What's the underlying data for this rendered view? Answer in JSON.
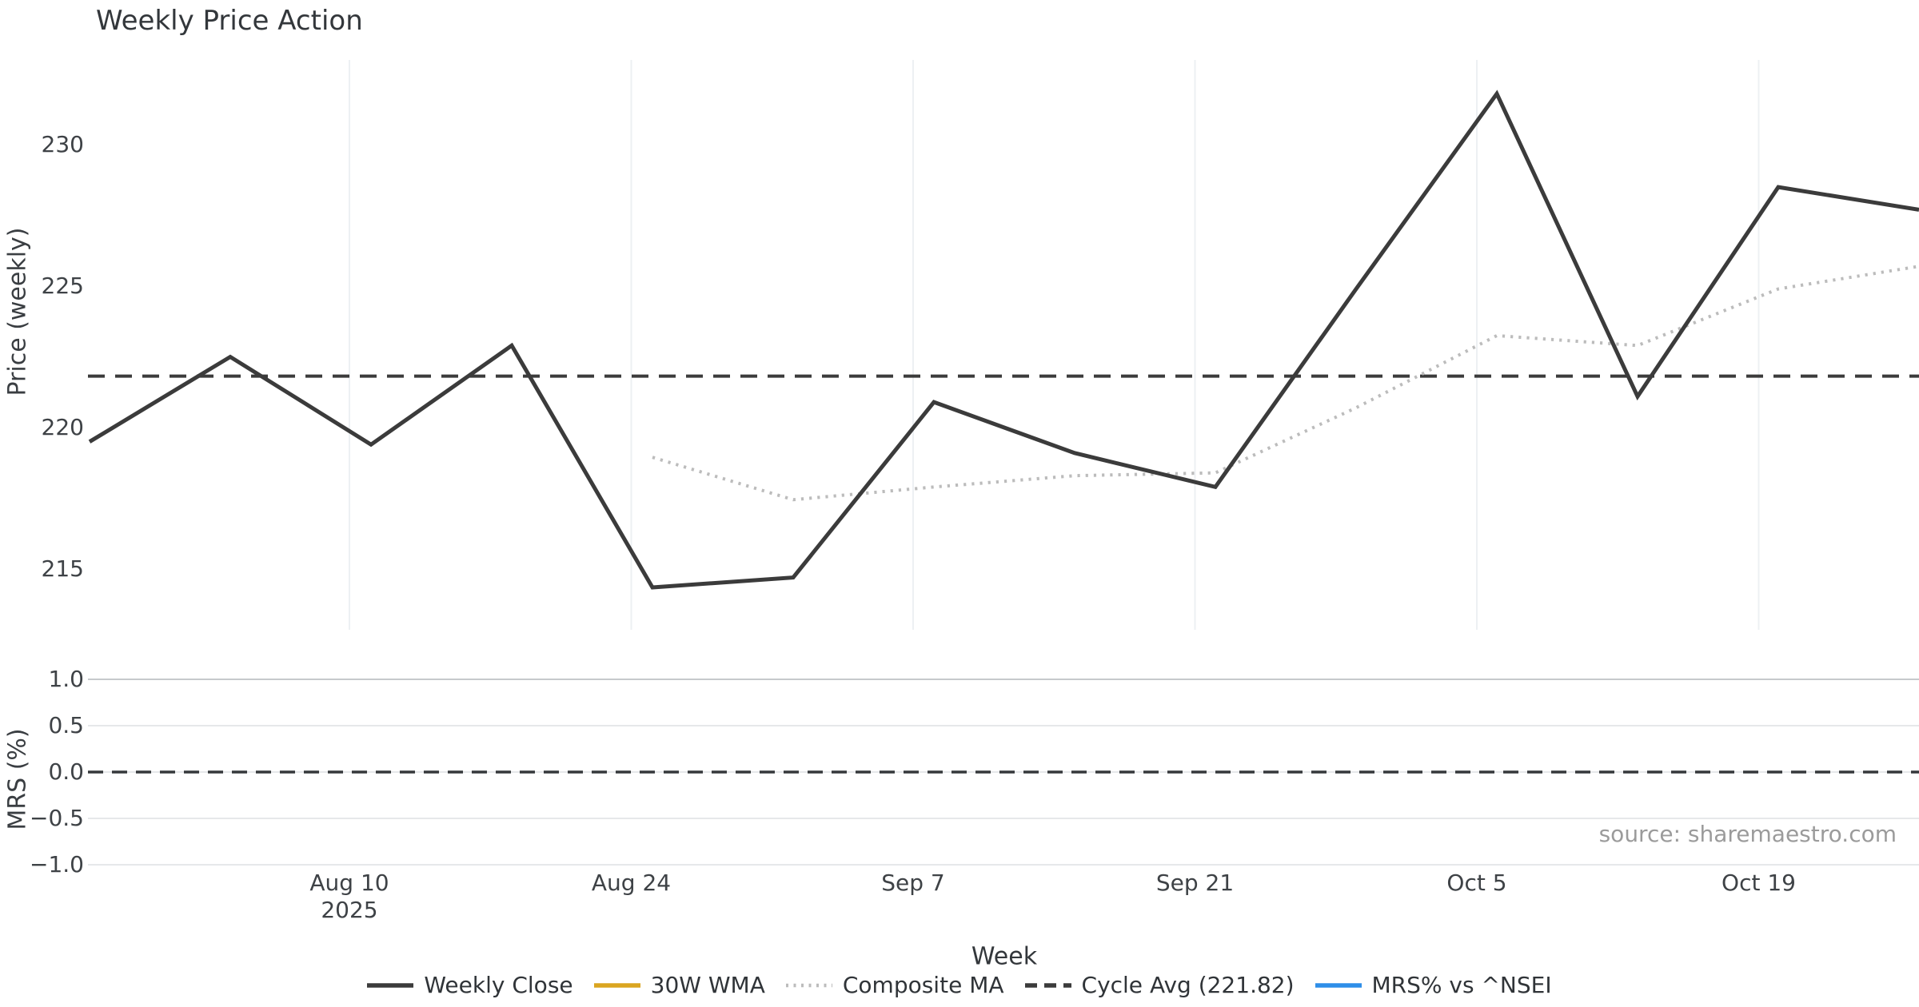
{
  "chart": {
    "title": "Weekly Price Action",
    "x_axis_label": "Week",
    "source_text": "source: sharemaestro.com",
    "price_panel": {
      "y_axis_label": "Price (weekly)",
      "y_ticks": [
        "230",
        "225",
        "220",
        "215"
      ]
    },
    "mrs_panel": {
      "y_axis_label": "MRS (%)",
      "y_ticks": [
        "1.0",
        "0.5",
        "0.0",
        "−0.5",
        "−1.0"
      ]
    },
    "x_ticks": [
      {
        "line1": "Aug 10",
        "line2": "2025"
      },
      {
        "line1": "Aug 24",
        "line2": ""
      },
      {
        "line1": "Sep 7",
        "line2": ""
      },
      {
        "line1": "Sep 21",
        "line2": ""
      },
      {
        "line1": "Oct 5",
        "line2": ""
      },
      {
        "line1": "Oct 19",
        "line2": ""
      }
    ],
    "legend": [
      {
        "label": "Weekly Close",
        "style": "solid",
        "color": "#3b3b3b"
      },
      {
        "label": "30W WMA",
        "style": "solid",
        "color": "#DAA520"
      },
      {
        "label": "Composite MA",
        "style": "dotted",
        "color": "#bcbcbc"
      },
      {
        "label": "Cycle Avg (221.82)",
        "style": "dashed",
        "color": "#3b3b3b"
      },
      {
        "label": "MRS% vs ^NSEI",
        "style": "solid",
        "color": "#2E8EE8"
      }
    ],
    "colors": {
      "weekly_close": "#3b3b3b",
      "composite_ma": "#bcbcbc",
      "cycle_avg": "#3b3b3b",
      "wma_30w": "#DAA520",
      "mrs": "#2E8EE8",
      "grid_vertical": "#edf0f3",
      "grid_horizontal": "#e6e8ea",
      "grid_horizontal_top": "#c6c9cc",
      "zero_line": "#35383b",
      "source": "#9b9b9b"
    }
  },
  "chart_data": {
    "type": "line",
    "title": "Weekly Price Action",
    "xlabel": "Week",
    "x_tick_labels": [
      "Aug 10 2025",
      "Aug 24",
      "Sep 7",
      "Sep 21",
      "Oct 5",
      "Oct 19"
    ],
    "n_weekly_points": 14,
    "legend_position": "bottom center",
    "grid": {
      "top_panel": "vertical only",
      "bottom_panel": "horizontal only"
    },
    "panels": [
      {
        "ylabel": "Price (weekly)",
        "yticks": [
          215,
          220,
          225,
          230
        ],
        "ylim": [
          213,
          233
        ],
        "series": [
          {
            "name": "Weekly Close",
            "type": "line",
            "style": "solid",
            "color": "#3b3b3b",
            "values": [
              219.5,
              222.5,
              219.4,
              222.9,
              214.35,
              214.7,
              220.9,
              219.1,
              217.9,
              224.9,
              231.8,
              221.1,
              228.5,
              227.7
            ]
          },
          {
            "name": "30W WMA",
            "type": "line",
            "style": "solid",
            "color": "#DAA520",
            "values": [],
            "visible": false
          },
          {
            "name": "Composite MA",
            "type": "line",
            "style": "dotted",
            "color": "#bcbcbc",
            "values": [
              null,
              null,
              null,
              null,
              218.95,
              217.45,
              217.9,
              218.3,
              218.4,
              220.7,
              223.25,
              222.9,
              224.9,
              225.7
            ]
          },
          {
            "name": "Cycle Avg (221.82)",
            "type": "hline",
            "style": "dashed",
            "color": "#3b3b3b",
            "value": 221.82
          }
        ]
      },
      {
        "ylabel": "MRS (%)",
        "yticks": [
          -1.0,
          -0.5,
          0.0,
          0.5,
          1.0
        ],
        "ylim": [
          -1.05,
          1.1
        ],
        "series": [
          {
            "name": "MRS% vs ^NSEI",
            "type": "line",
            "style": "solid",
            "color": "#2E8EE8",
            "values": [
              0,
              0,
              0,
              0,
              0,
              0,
              0,
              0,
              0,
              0,
              0,
              0,
              0,
              0
            ],
            "visible": false
          },
          {
            "name": "Zero line",
            "type": "hline",
            "style": "dashed",
            "color": "#35383b",
            "value": 0.0
          }
        ]
      }
    ]
  }
}
